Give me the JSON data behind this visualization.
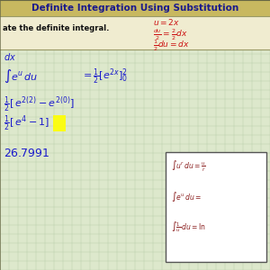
{
  "title": "Definite Integration Using Substitution",
  "title_color": "#1a1a8c",
  "title_bg": "#c8b860",
  "grid_bg": "#dde8cc",
  "header_bg": "#f0ecd0",
  "blue": "#1a1acc",
  "red": "#cc1111",
  "dark_red": "#8B2020",
  "yellow_highlight": "#ffff00",
  "figw": 3.0,
  "figh": 3.0,
  "dpi": 100
}
